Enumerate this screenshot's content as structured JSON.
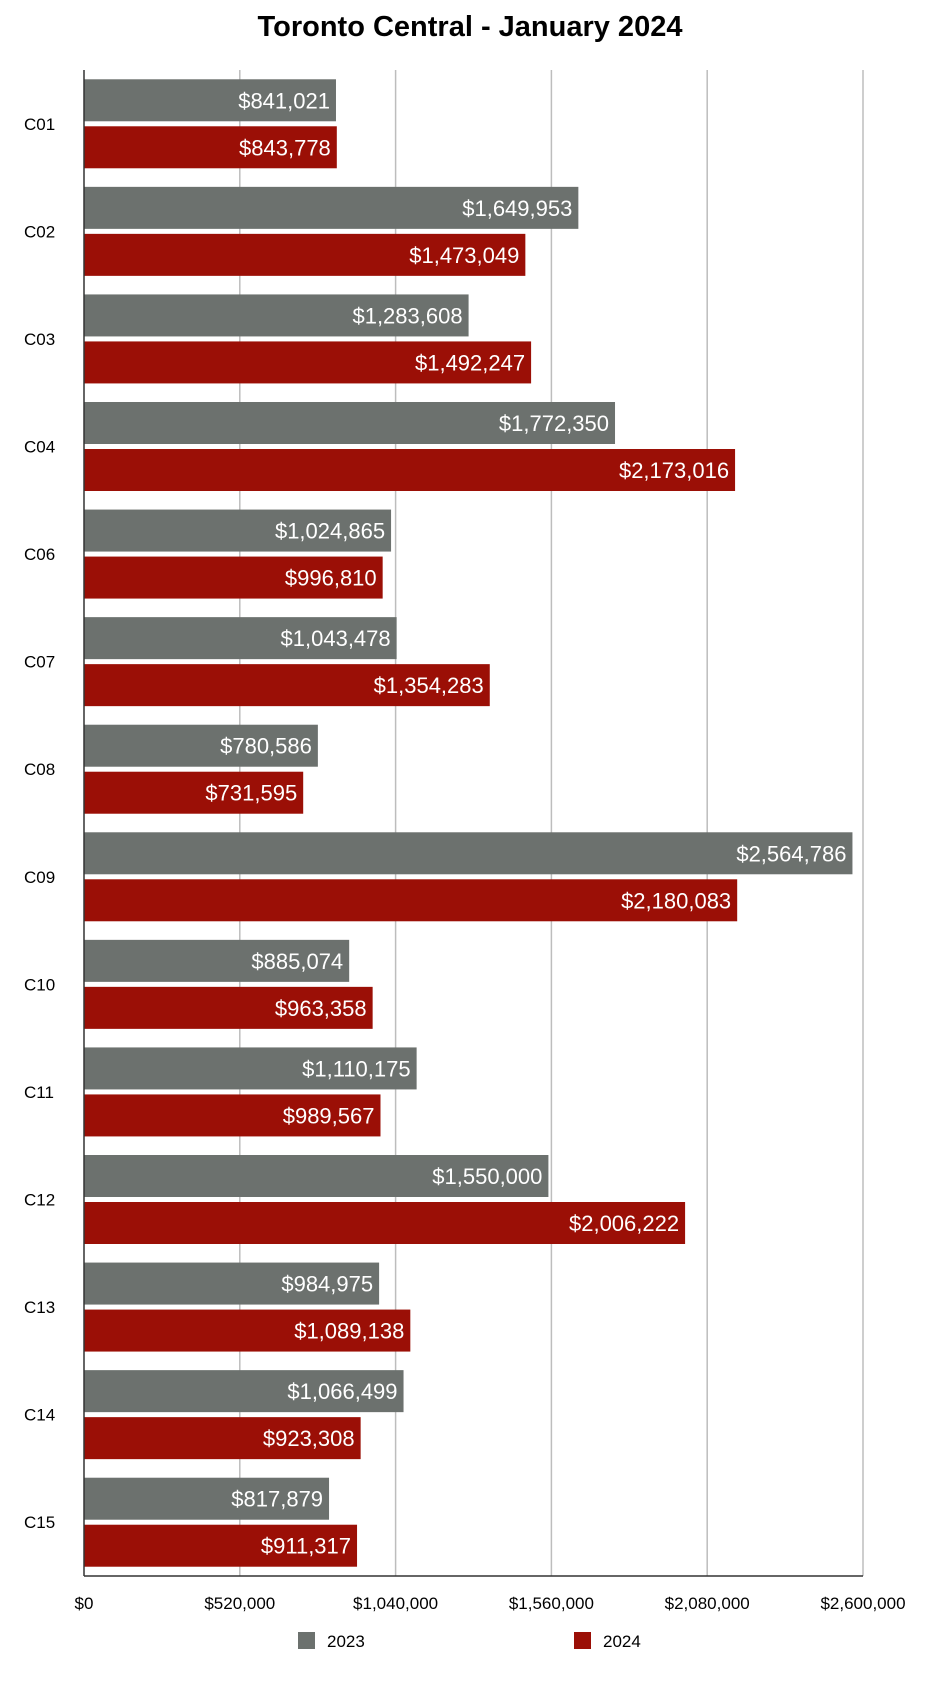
{
  "chart_data": {
    "type": "bar",
    "orientation": "horizontal",
    "title": "Toronto Central - January 2024",
    "xlabel": "",
    "ylabel": "",
    "categories": [
      "C01",
      "C02",
      "C03",
      "C04",
      "C06",
      "C07",
      "C08",
      "C09",
      "C10",
      "C11",
      "C12",
      "C13",
      "C14",
      "C15"
    ],
    "series": [
      {
        "name": "2023",
        "color": "#6c716e",
        "values": [
          841021,
          1649953,
          1283608,
          1772350,
          1024865,
          1043478,
          780586,
          2564786,
          885074,
          1110175,
          1550000,
          984975,
          1066499,
          817879
        ],
        "labels": [
          "$841,021",
          "$1,649,953",
          "$1,283,608",
          "$1,772,350",
          "$1,024,865",
          "$1,043,478",
          "$780,586",
          "$2,564,786",
          "$885,074",
          "$1,110,175",
          "$1,550,000",
          "$984,975",
          "$1,066,499",
          "$817,879"
        ]
      },
      {
        "name": "2024",
        "color": "#9b0f06",
        "values": [
          843778,
          1473049,
          1492247,
          2173016,
          996810,
          1354283,
          731595,
          2180083,
          963358,
          989567,
          2006222,
          1089138,
          923308,
          911317
        ],
        "labels": [
          "$843,778",
          "$1,473,049",
          "$1,492,247",
          "$2,173,016",
          "$996,810",
          "$1,354,283",
          "$731,595",
          "$2,180,083",
          "$963,358",
          "$989,567",
          "$2,006,222",
          "$1,089,138",
          "$923,308",
          "$911,317"
        ]
      }
    ],
    "xlim": [
      0,
      2600000
    ],
    "x_ticks": [
      0,
      520000,
      1040000,
      1560000,
      2080000,
      2600000
    ],
    "x_tick_labels": [
      "$0",
      "$520,000",
      "$1,040,000",
      "$1,560,000",
      "$2,080,000",
      "$2,600,000"
    ],
    "grid": true,
    "legend": "bottom",
    "gridline_color": "#bdbdbd",
    "axis_color": "#333333"
  }
}
